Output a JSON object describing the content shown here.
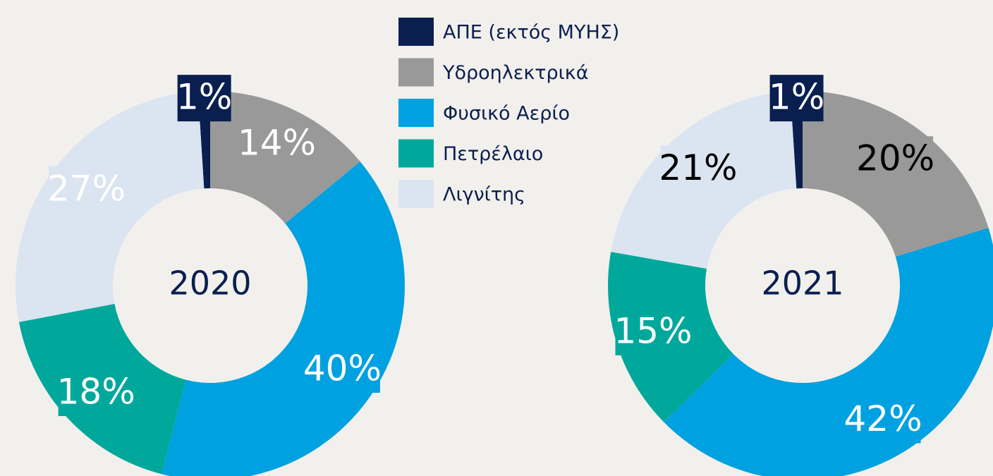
{
  "chart_data": {
    "type": "pie",
    "categories": [
      "ΑΠΕ (εκτός ΜΥΗΣ)",
      "Υδροηλεκτρικά",
      "Φυσικό Αερίο",
      "Πετρέλαιο",
      "Λιγνίτης"
    ],
    "colors": [
      "#0a1f4f",
      "#999999",
      "#00a1e0",
      "#00a89c",
      "#dbe4f1"
    ],
    "series": [
      {
        "name": "2020",
        "values": [
          1,
          14,
          40,
          18,
          27
        ],
        "value_labels": [
          "1%",
          "14%",
          "40%",
          "18%",
          "27%"
        ],
        "label_colors": [
          "#ffffff",
          "#ffffff",
          "#ffffff",
          "#ffffff",
          "#ffffff"
        ]
      },
      {
        "name": "2021",
        "values": [
          1,
          20,
          42,
          15,
          21
        ],
        "value_labels": [
          "1%",
          "20%",
          "42%",
          "15%",
          "21%"
        ],
        "label_colors": [
          "#ffffff",
          "#000000",
          "#ffffff",
          "#ffffff",
          "#000000"
        ]
      }
    ]
  }
}
